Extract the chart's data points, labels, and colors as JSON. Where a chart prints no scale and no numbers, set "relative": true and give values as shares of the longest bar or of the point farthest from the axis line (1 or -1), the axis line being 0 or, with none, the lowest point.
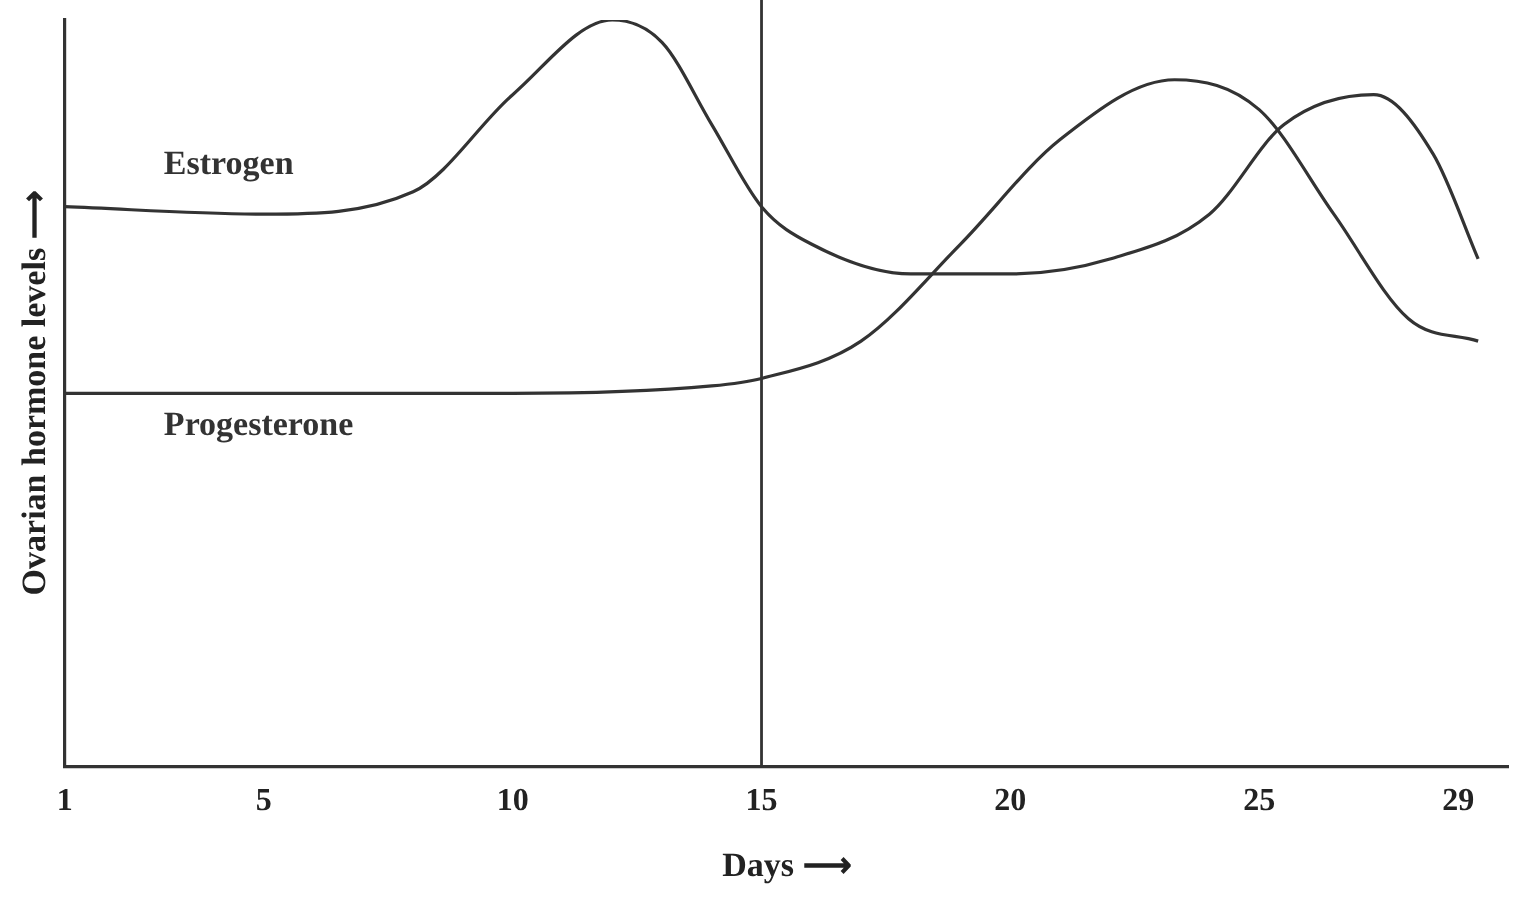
{
  "chart_data": {
    "type": "line",
    "relative": true,
    "xlabel": "Days ⟶",
    "ylabel": "Ovarian hormone levels ⟶",
    "xlim": [
      1,
      30
    ],
    "xticks": [
      1,
      5,
      10,
      15,
      20,
      25,
      29
    ],
    "series": [
      {
        "name": "Estrogen",
        "color": "#333333",
        "x": [
          1,
          5,
          8,
          10,
          12,
          13,
          14,
          15,
          16,
          18,
          20,
          22,
          24,
          25.5,
          27.3,
          28.5,
          29.4
        ],
        "values": [
          0.75,
          0.74,
          0.77,
          0.9,
          1.0,
          0.97,
          0.86,
          0.75,
          0.7,
          0.66,
          0.66,
          0.68,
          0.74,
          0.86,
          0.9,
          0.82,
          0.68
        ]
      },
      {
        "name": "Progesterone",
        "color": "#333333",
        "x": [
          1,
          5,
          10,
          14,
          15,
          17,
          19,
          21,
          23.3,
          25,
          26.5,
          28,
          29.4
        ],
        "values": [
          0.5,
          0.5,
          0.5,
          0.51,
          0.52,
          0.57,
          0.7,
          0.84,
          0.92,
          0.88,
          0.74,
          0.6,
          0.57
        ]
      }
    ],
    "ref_lines": [
      {
        "axis": "x",
        "value": 15,
        "color": "#333333"
      }
    ],
    "grid": false,
    "legend": false,
    "marker": "none",
    "line_style": "solid"
  }
}
